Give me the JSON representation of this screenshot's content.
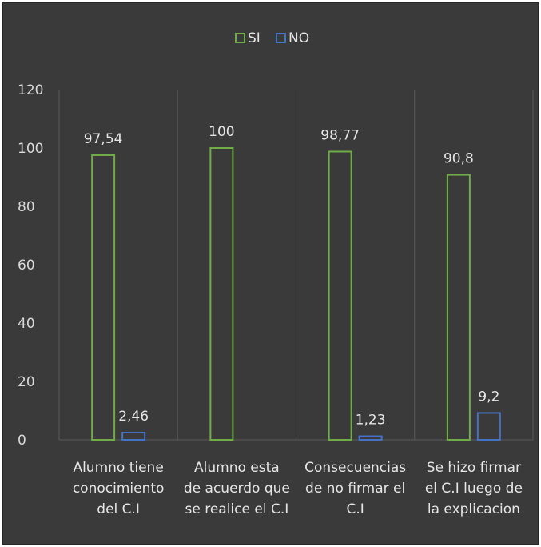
{
  "chart_data": {
    "type": "bar",
    "categories": [
      [
        "Alumno tiene",
        "conocimiento",
        "del C.I"
      ],
      [
        "Alumno esta",
        "de acuerdo que",
        "se realice el C.I"
      ],
      [
        "Consecuencias",
        "de no firmar el",
        "C.I"
      ],
      [
        "Se hizo firmar",
        "el C.I luego de",
        "la explicacion"
      ]
    ],
    "series": [
      {
        "name": "SI",
        "values": [
          97.54,
          100,
          98.77,
          90.8
        ],
        "labels": [
          "97,54",
          "100",
          "98,77",
          "90,8"
        ],
        "color": "#70ad47"
      },
      {
        "name": "NO",
        "values": [
          2.46,
          0,
          1.23,
          9.2
        ],
        "labels": [
          "2,46",
          "",
          "1,23",
          "9,2"
        ],
        "color": "#4472c4"
      }
    ],
    "yticks": [
      0,
      20,
      40,
      60,
      80,
      100,
      120
    ],
    "ylim": [
      0,
      120
    ],
    "legend_position": "top",
    "grid": "vertical-category-separators",
    "background": "#3a3a3a",
    "bar_fill": "none"
  }
}
